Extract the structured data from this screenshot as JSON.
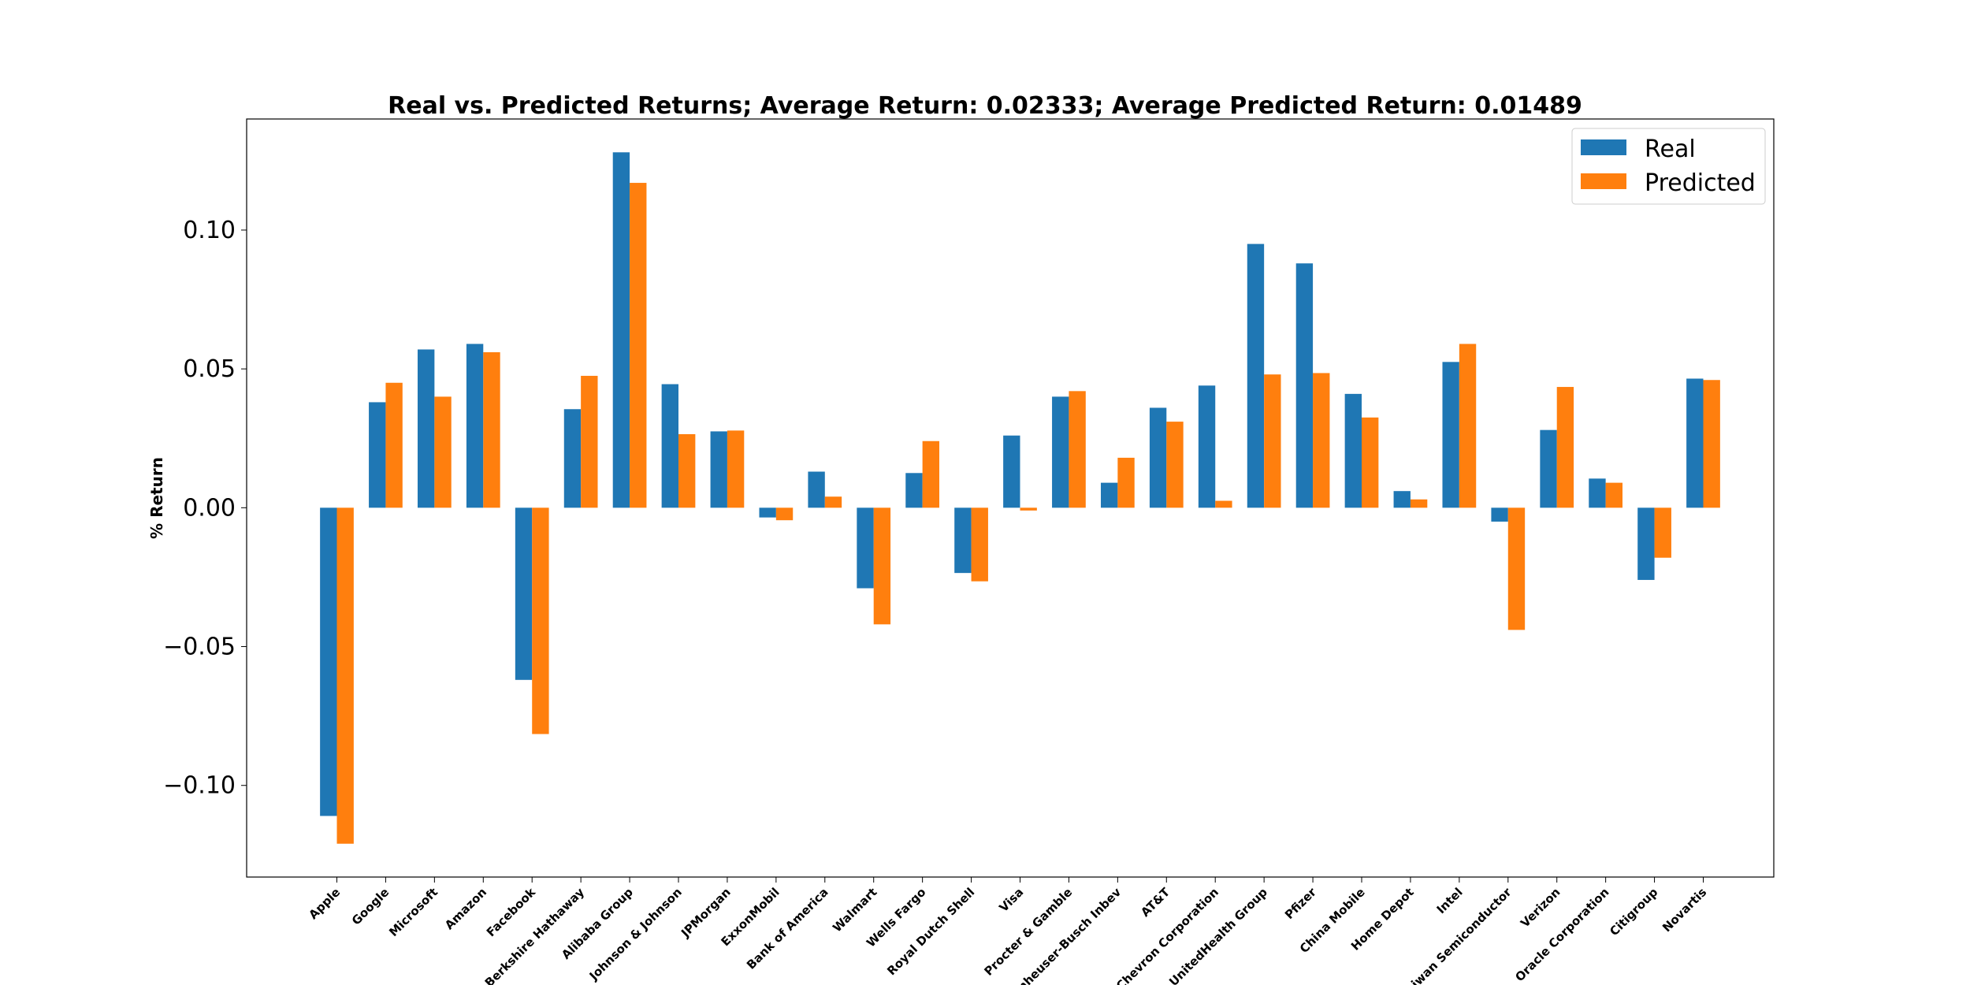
{
  "chart_data": {
    "type": "bar",
    "title": "Real vs. Predicted Returns; Average Return: 0.02333; Average Predicted Return: 0.01489",
    "xlabel": "",
    "ylabel": "% Return",
    "ylim": [
      -0.133,
      0.14
    ],
    "yticks": [
      0.1,
      0.05,
      0.0,
      -0.05,
      -0.1
    ],
    "ytick_labels": [
      "0.10",
      "0.05",
      "0.00",
      "−0.05",
      "−0.10"
    ],
    "grid": false,
    "legend_position": "top-right",
    "categories": [
      "Apple",
      "Google",
      "Microsoft",
      "Amazon",
      "Facebook",
      "Berkshire Hathaway",
      "Alibaba Group",
      "Johnson & Johnson",
      "JPMorgan",
      "ExxonMobil",
      "Bank of America",
      "Walmart",
      "Wells Fargo",
      "Royal Dutch Shell",
      "Visa",
      "Procter & Gamble",
      "Anheuser-Busch Inbev",
      "AT&T",
      "Chevron Corporation",
      "UnitedHealth Group",
      "Pfizer",
      "China Mobile",
      "Home Depot",
      "Intel",
      "Taiwan Semiconductor",
      "Verizon",
      "Oracle Corporation",
      "Citigroup",
      "Novartis"
    ],
    "series": [
      {
        "name": "Real",
        "color": "#1f77b4",
        "values": [
          -0.111,
          0.038,
          0.057,
          0.059,
          -0.062,
          0.0355,
          0.128,
          0.0445,
          0.0275,
          -0.0035,
          0.013,
          -0.029,
          0.0125,
          -0.0235,
          0.026,
          0.04,
          0.009,
          0.036,
          0.044,
          0.095,
          0.088,
          0.041,
          0.006,
          0.0525,
          -0.005,
          0.028,
          0.0105,
          -0.026,
          0.0465
        ]
      },
      {
        "name": "Predicted",
        "color": "#ff7f0e",
        "values": [
          -0.121,
          0.045,
          0.04,
          0.056,
          -0.0815,
          0.0475,
          0.117,
          0.0265,
          0.0278,
          -0.0045,
          0.004,
          -0.042,
          0.024,
          -0.0265,
          -0.001,
          0.042,
          0.018,
          0.031,
          0.0025,
          0.048,
          0.0485,
          0.0325,
          0.003,
          0.059,
          -0.044,
          0.0435,
          0.009,
          -0.018,
          0.046
        ]
      }
    ]
  }
}
